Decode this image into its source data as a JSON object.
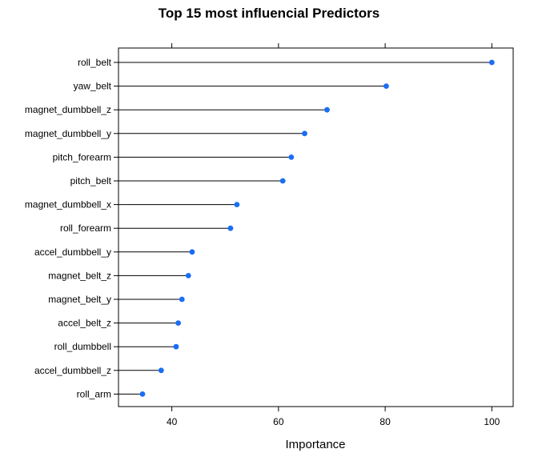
{
  "chart_data": {
    "type": "lollipop",
    "title": "Top 15 most influencial Predictors",
    "xlabel": "Importance",
    "ylabel": "",
    "xlim": [
      30,
      104
    ],
    "xticks": [
      40,
      60,
      80,
      100
    ],
    "grid": false,
    "legend": "none",
    "colors": {
      "point": "#1a6ef5",
      "stem": "#000000",
      "frame": "#000000"
    },
    "categories": [
      "roll_belt",
      "yaw_belt",
      "magnet_dumbbell_z",
      "magnet_dumbbell_y",
      "pitch_forearm",
      "pitch_belt",
      "magnet_dumbbell_x",
      "roll_forearm",
      "accel_dumbbell_y",
      "magnet_belt_z",
      "magnet_belt_y",
      "accel_belt_z",
      "roll_dumbbell",
      "accel_dumbbell_z",
      "roll_arm"
    ],
    "values": [
      100,
      80.2,
      69.1,
      64.9,
      62.4,
      60.8,
      52.2,
      51.0,
      43.8,
      43.1,
      41.9,
      41.2,
      40.8,
      38.0,
      34.5
    ]
  }
}
